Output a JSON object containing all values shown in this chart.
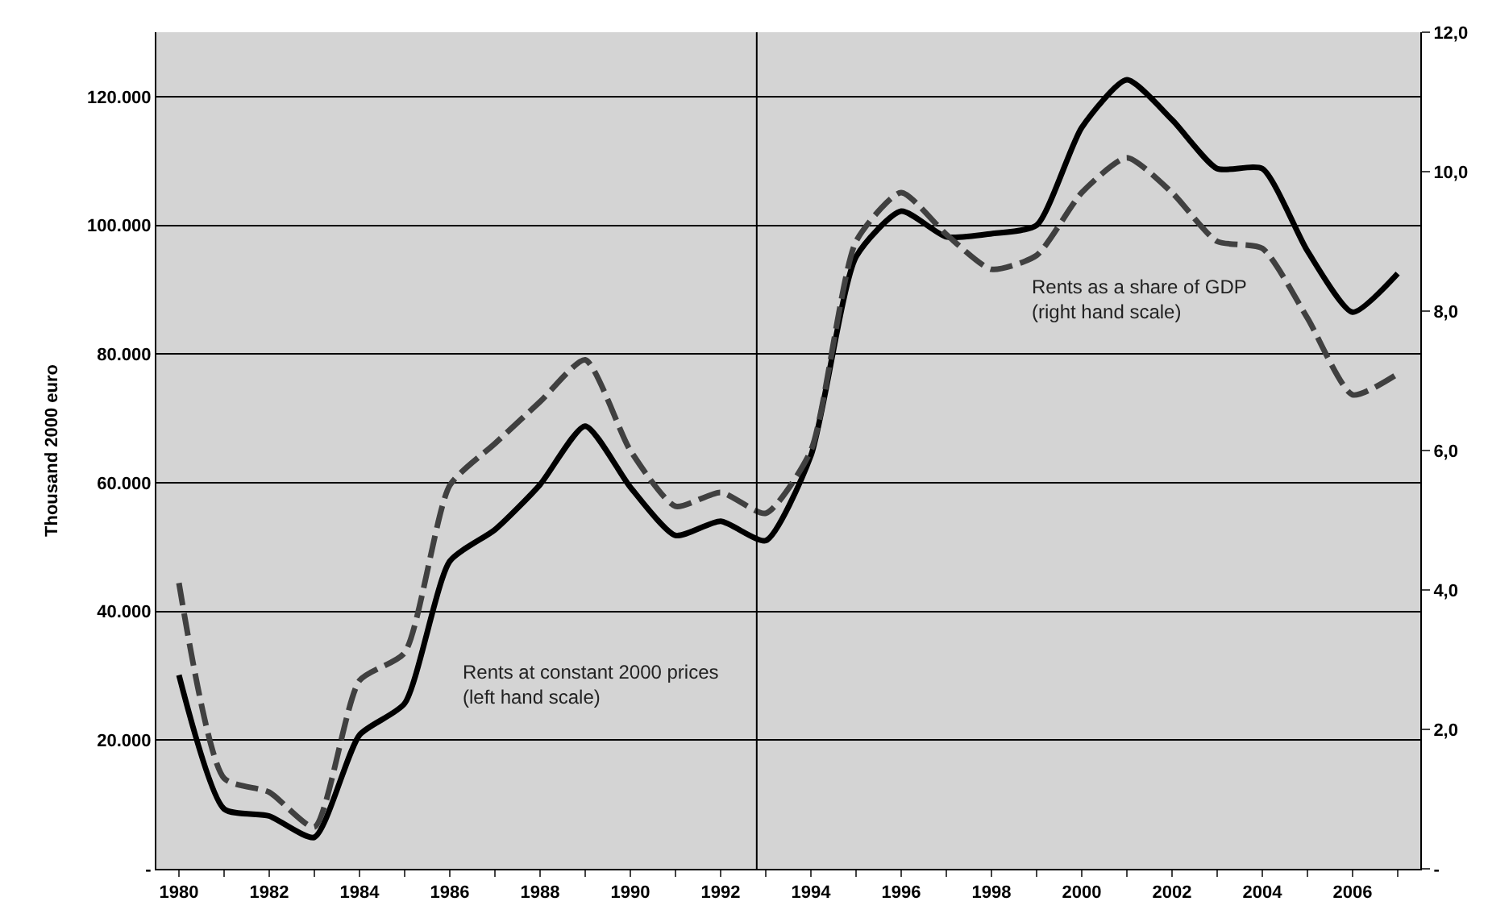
{
  "chart_data": {
    "type": "line",
    "ylabel": "Thousand 2000 euro",
    "x": [
      1980,
      1981,
      1982,
      1983,
      1984,
      1985,
      1986,
      1987,
      1988,
      1989,
      1990,
      1991,
      1992,
      1993,
      1994,
      1995,
      1996,
      1997,
      1998,
      1999,
      2000,
      2001,
      2002,
      2003,
      2004,
      2005,
      2006,
      2007
    ],
    "series": [
      {
        "color": "#000000",
        "line_style": "solid",
        "values": [
          30100,
          9300,
          8200,
          4900,
          20800,
          25700,
          47800,
          52700,
          59700,
          68800,
          59300,
          51800,
          54000,
          51000,
          64200,
          95100,
          102200,
          98200,
          98700,
          100000,
          115200,
          122600,
          116400,
          108800,
          108800,
          96000,
          86500,
          92500
        ]
      },
      {
        "color": "#404040",
        "line_style": "dashed",
        "axis": "y2",
        "values": [
          4.1,
          1.3,
          1.1,
          0.6,
          2.7,
          3.1,
          5.5,
          6.1,
          6.7,
          7.3,
          6.0,
          5.2,
          5.4,
          5.1,
          6.0,
          9.0,
          9.7,
          9.1,
          8.6,
          8.8,
          9.7,
          10.2,
          9.7,
          9.0,
          8.9,
          7.9,
          6.8,
          7.1
        ]
      }
    ],
    "xlim": [
      1979.5,
      2007.5
    ],
    "xticks": [
      1980,
      {
        "value": 1981,
        "label": null
      },
      1982,
      {
        "value": 1983,
        "label": null
      },
      1984,
      {
        "value": 1985,
        "label": null
      },
      1986,
      {
        "value": 1987,
        "label": null
      },
      1988,
      {
        "value": 1989,
        "label": null
      },
      1990,
      {
        "value": 1991,
        "label": null
      },
      1992,
      {
        "value": 1993,
        "label": null
      },
      1994,
      {
        "value": 1995,
        "label": null
      },
      1996,
      {
        "value": 1997,
        "label": null
      },
      1998,
      {
        "value": 1999,
        "label": null
      },
      2000,
      {
        "value": 2001,
        "label": null
      },
      2002,
      {
        "value": 2003,
        "label": null
      },
      2004,
      {
        "value": 2005,
        "label": null
      },
      2006,
      {
        "value": 2007,
        "label": null
      }
    ],
    "ylim": [
      0,
      130000
    ],
    "yticks": [
      {
        "value": 0,
        "label": "-"
      },
      {
        "value": 20000,
        "label": "20.000"
      },
      {
        "value": 40000,
        "label": "40.000"
      },
      {
        "value": 60000,
        "label": "60.000"
      },
      {
        "value": 80000,
        "label": "80.000"
      },
      {
        "value": 100000,
        "label": "100.000"
      },
      {
        "value": 120000,
        "label": "120.000"
      }
    ],
    "y2lim": [
      0,
      12
    ],
    "y2ticks": [
      {
        "value": 0,
        "label": "-"
      },
      {
        "value": 2,
        "label": "2,0"
      },
      {
        "value": 4,
        "label": "4,0"
      },
      {
        "value": 6,
        "label": "6,0"
      },
      {
        "value": 8,
        "label": "8,0"
      },
      {
        "value": 10,
        "label": "10,0"
      },
      {
        "value": 12,
        "label": "12,0"
      }
    ],
    "grid": "y",
    "marker": "none",
    "ref_lines": [
      {
        "axis": "x",
        "value": 1992.8,
        "color": "#000000",
        "line_style": "solid"
      }
    ],
    "annotations": [
      "Rents at constant 2000 prices\n(left hand scale)",
      "Rents as a share of GDP\n(right hand scale)"
    ]
  }
}
